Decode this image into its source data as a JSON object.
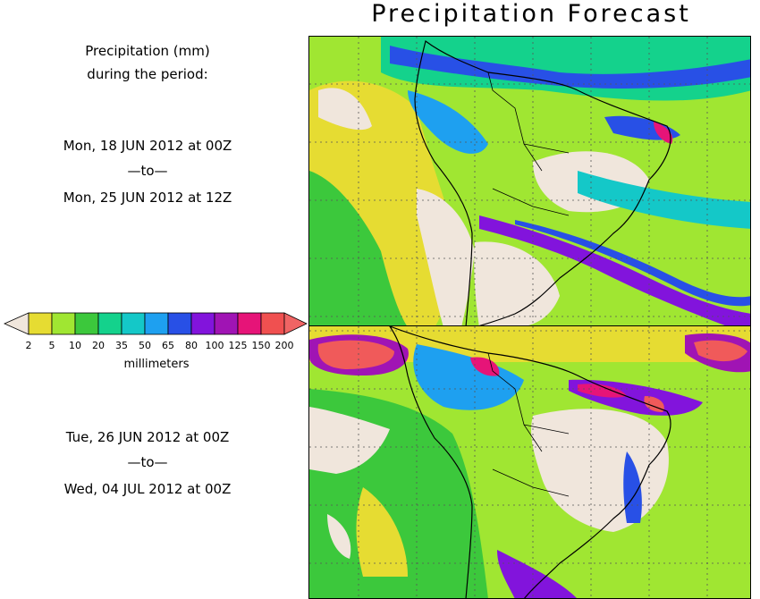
{
  "title": "Precipitation Forecast",
  "header_text": [
    "Precipitation (mm)",
    "during the period:"
  ],
  "period1": {
    "start": "Mon, 18 JUN 2012 at 00Z",
    "sep": "—to—",
    "end": "Mon, 25 JUN 2012 at 12Z"
  },
  "period2": {
    "start": "Tue, 26 JUN 2012 at 00Z",
    "sep": "—to—",
    "end": "Wed, 04 JUL 2012 at 00Z"
  },
  "legend": {
    "unit": "millimeters",
    "ticks": [
      "2",
      "5",
      "10",
      "20",
      "35",
      "50",
      "65",
      "80",
      "100",
      "125",
      "150",
      "200"
    ],
    "colors": [
      "#f0e6dc",
      "#e6dc32",
      "#a0e632",
      "#3cc83c",
      "#14d28c",
      "#14c8c8",
      "#1ea0f0",
      "#2850e6",
      "#8214dc",
      "#a014b4",
      "#e61478",
      "#f05050",
      "#f06464"
    ]
  },
  "palette": {
    "dry": "#f0e6dc",
    "c1": "#e6dc32",
    "c2": "#a0e632",
    "c3": "#3cc83c",
    "c4": "#14d28c",
    "c5": "#14c8c8",
    "c6": "#1ea0f0",
    "c7": "#2850e6",
    "c8": "#8214dc",
    "c9": "#a014b4",
    "c10": "#e61478",
    "c11": "#f05a5a"
  }
}
